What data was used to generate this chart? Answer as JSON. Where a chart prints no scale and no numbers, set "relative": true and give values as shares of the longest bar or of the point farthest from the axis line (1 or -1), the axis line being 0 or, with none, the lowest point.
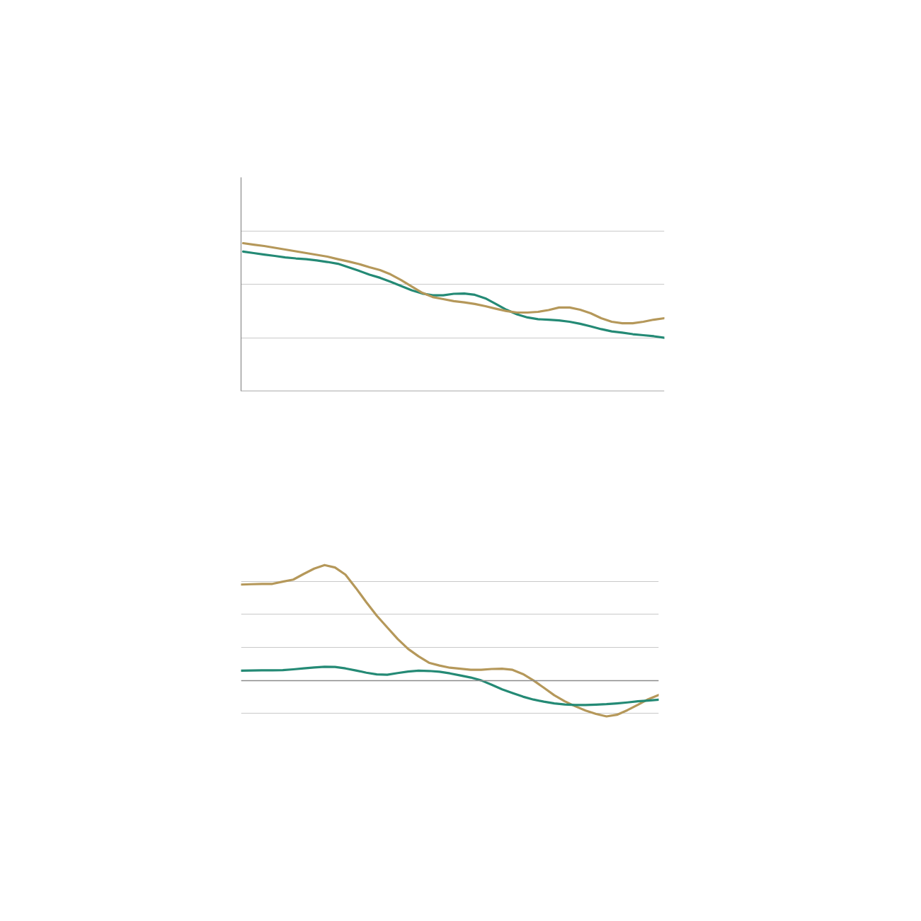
{
  "chart_data": [
    {
      "type": "line",
      "relative": true,
      "grid": "y",
      "categories": [
        null,
        null,
        null,
        null,
        null,
        null,
        null,
        null,
        null,
        null,
        null,
        null,
        null,
        null,
        null,
        null,
        null,
        null,
        null,
        null,
        null,
        null,
        null,
        null,
        null,
        null,
        null,
        null,
        null,
        null,
        null,
        null,
        null,
        null,
        null,
        null,
        null,
        null,
        null,
        null,
        null
      ],
      "ylim": [
        0,
        1.445
      ],
      "series": [
        {
          "color": "#248a75",
          "values": [
            0.943,
            0.933,
            0.923,
            0.914,
            0.904,
            0.897,
            0.892,
            0.883,
            0.873,
            0.861,
            0.837,
            0.813,
            0.787,
            0.766,
            0.739,
            0.711,
            0.682,
            0.66,
            0.648,
            0.648,
            0.658,
            0.66,
            0.651,
            0.627,
            0.589,
            0.55,
            0.519,
            0.498,
            0.486,
            0.483,
            0.478,
            0.469,
            0.455,
            0.438,
            0.419,
            0.404,
            0.395,
            0.385,
            0.378,
            0.371,
            0.361
          ]
        },
        {
          "color": "#b5985a",
          "values": [
            1.0,
            0.99,
            0.981,
            0.969,
            0.957,
            0.945,
            0.933,
            0.921,
            0.909,
            0.892,
            0.876,
            0.859,
            0.837,
            0.818,
            0.789,
            0.751,
            0.708,
            0.665,
            0.636,
            0.622,
            0.608,
            0.6,
            0.589,
            0.574,
            0.557,
            0.541,
            0.531,
            0.531,
            0.536,
            0.548,
            0.565,
            0.565,
            0.55,
            0.526,
            0.493,
            0.469,
            0.459,
            0.459,
            0.469,
            0.483,
            0.493
          ]
        }
      ]
    },
    {
      "type": "line",
      "relative": true,
      "grid": "y",
      "categories": [
        null,
        null,
        null,
        null,
        null,
        null,
        null,
        null,
        null,
        null,
        null,
        null,
        null,
        null,
        null,
        null,
        null,
        null,
        null,
        null,
        null,
        null,
        null,
        null,
        null,
        null,
        null,
        null,
        null,
        null,
        null,
        null,
        null,
        null,
        null,
        null,
        null,
        null,
        null,
        null,
        null
      ],
      "series": [
        {
          "color": "#b5985a",
          "values": [
            0.831,
            0.834,
            0.837,
            0.837,
            0.856,
            0.874,
            0.923,
            0.969,
            1.0,
            0.979,
            0.917,
            0.801,
            0.678,
            0.561,
            0.46,
            0.359,
            0.273,
            0.209,
            0.153,
            0.129,
            0.11,
            0.101,
            0.092,
            0.092,
            0.099,
            0.101,
            0.092,
            0.055,
            0,
            -0.064,
            -0.129,
            -0.181,
            -0.224,
            -0.261,
            -0.291,
            -0.312,
            -0.298,
            -0.258,
            -0.212,
            -0.163,
            -0.126
          ]
        },
        {
          "color": "#248a75",
          "values": [
            0.085,
            0.086,
            0.087,
            0.088,
            0.089,
            0.096,
            0.104,
            0.112,
            0.118,
            0.117,
            0.104,
            0.086,
            0.067,
            0.052,
            0.049,
            0.064,
            0.077,
            0.084,
            0.082,
            0.075,
            0.061,
            0.043,
            0.025,
            0,
            -0.037,
            -0.077,
            -0.11,
            -0.141,
            -0.166,
            -0.184,
            -0.199,
            -0.209,
            -0.213,
            -0.213,
            -0.21,
            -0.206,
            -0.199,
            -0.191,
            -0.181,
            -0.175,
            -0.167
          ]
        }
      ]
    }
  ]
}
